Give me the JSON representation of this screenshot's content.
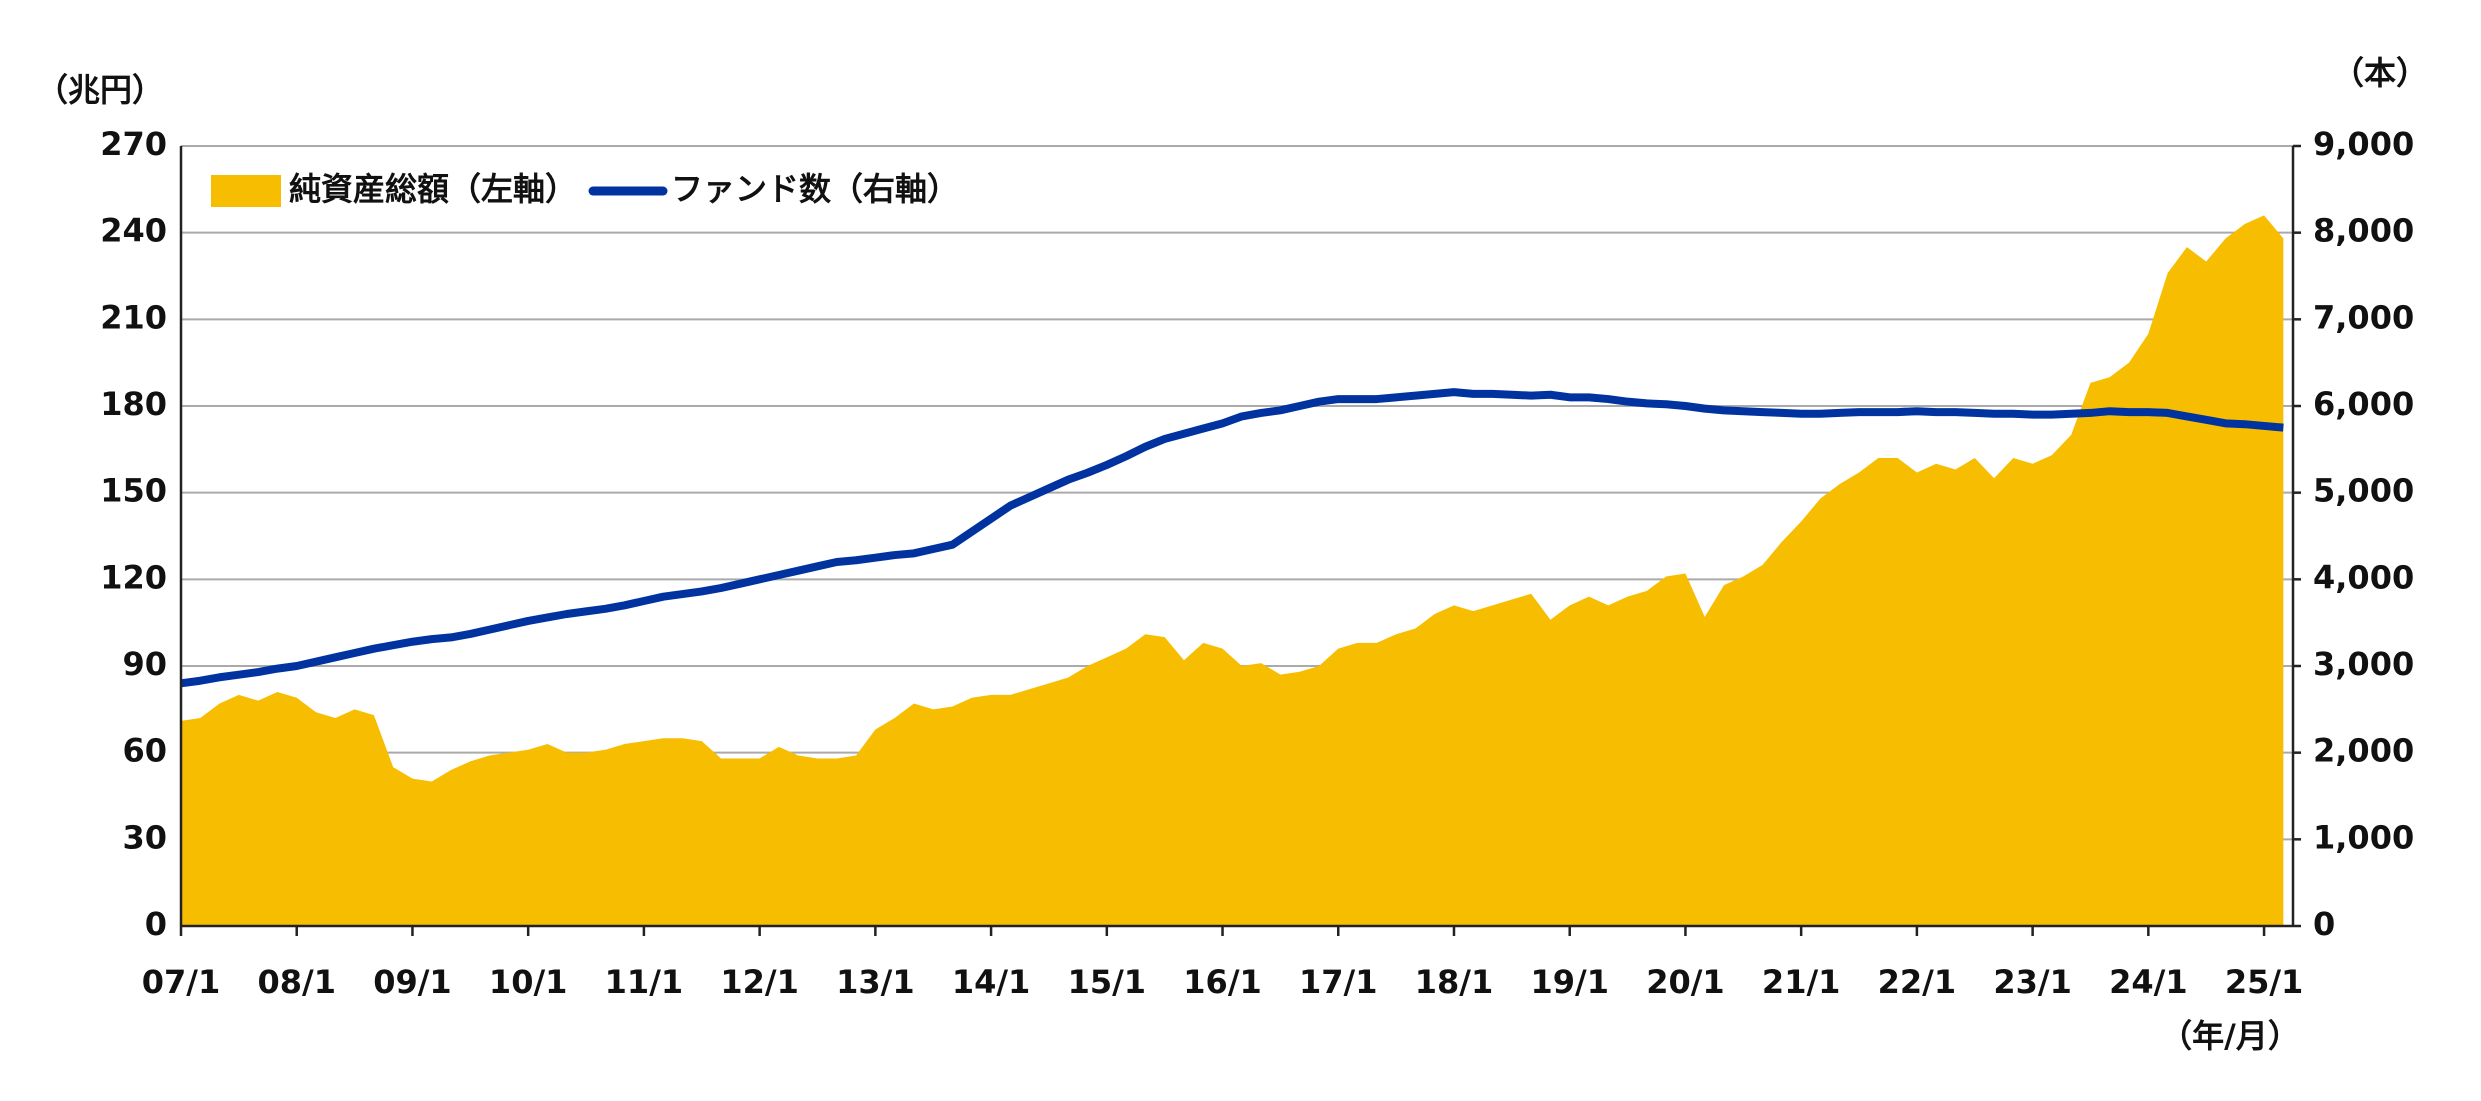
{
  "chart_data": {
    "type": "combo",
    "y_unit": "（兆円）",
    "y2_unit": "（本）",
    "x_unit": "（年/月）",
    "categories": [
      "07/1",
      null,
      null,
      null,
      null,
      null,
      "08/1",
      null,
      null,
      null,
      null,
      null,
      "09/1",
      null,
      null,
      null,
      null,
      null,
      "10/1",
      null,
      null,
      null,
      null,
      null,
      "11/1",
      null,
      null,
      null,
      null,
      null,
      "12/1",
      null,
      null,
      null,
      null,
      null,
      "13/1",
      null,
      null,
      null,
      null,
      null,
      "14/1",
      null,
      null,
      null,
      null,
      null,
      "15/1",
      null,
      null,
      null,
      null,
      null,
      "16/1",
      null,
      null,
      null,
      null,
      null,
      "17/1",
      null,
      null,
      null,
      null,
      null,
      "18/1",
      null,
      null,
      null,
      null,
      null,
      "19/1",
      null,
      null,
      null,
      null,
      null,
      "20/1",
      null,
      null,
      null,
      null,
      null,
      "21/1",
      null,
      null,
      null,
      null,
      null,
      "22/1",
      null,
      null,
      null,
      null,
      null,
      "23/1",
      null,
      null,
      null,
      null,
      null,
      "24/1",
      null,
      null,
      null,
      null,
      null,
      "25/1",
      null
    ],
    "series": [
      {
        "name": "純資産総額（左軸）",
        "type": "area",
        "axis": "y",
        "color": "#f7bd00",
        "values": [
          71,
          72,
          77,
          80,
          78,
          81,
          79,
          74,
          72,
          75,
          73,
          55,
          51,
          50,
          54,
          57,
          59,
          60,
          61,
          63,
          60,
          60,
          61,
          63,
          64,
          65,
          65,
          64,
          58,
          58,
          58,
          62,
          59,
          58,
          58,
          59,
          68,
          72,
          77,
          75,
          76,
          79,
          80,
          80,
          82,
          84,
          86,
          90,
          93,
          96,
          101,
          100,
          92,
          98,
          96,
          90,
          91,
          87,
          88,
          90,
          96,
          98,
          98,
          101,
          103,
          108,
          111,
          109,
          111,
          113,
          115,
          106,
          111,
          114,
          111,
          114,
          116,
          121,
          122,
          107,
          118,
          121,
          125,
          133,
          140,
          148,
          153,
          157,
          162,
          162,
          157,
          160,
          158,
          162,
          155,
          162,
          160,
          163,
          170,
          188,
          190,
          195,
          205,
          226,
          235,
          230,
          238,
          243,
          246,
          238
        ]
      },
      {
        "name": "ファンド数（右軸）",
        "type": "line",
        "axis": "y2",
        "color": "#0033a0",
        "values": [
          2800,
          2830,
          2870,
          2900,
          2930,
          2970,
          3000,
          3050,
          3100,
          3150,
          3200,
          3240,
          3280,
          3310,
          3330,
          3370,
          3420,
          3470,
          3520,
          3560,
          3600,
          3630,
          3660,
          3700,
          3750,
          3800,
          3830,
          3860,
          3900,
          3950,
          4000,
          4050,
          4100,
          4150,
          4200,
          4220,
          4250,
          4280,
          4300,
          4350,
          4400,
          4550,
          4700,
          4850,
          4950,
          5050,
          5150,
          5230,
          5320,
          5420,
          5530,
          5620,
          5680,
          5740,
          5800,
          5880,
          5920,
          5950,
          6000,
          6050,
          6080,
          6080,
          6080,
          6100,
          6120,
          6140,
          6160,
          6140,
          6140,
          6130,
          6120,
          6130,
          6100,
          6100,
          6080,
          6050,
          6030,
          6020,
          6000,
          5970,
          5950,
          5940,
          5930,
          5920,
          5910,
          5910,
          5920,
          5930,
          5930,
          5930,
          5940,
          5930,
          5930,
          5920,
          5910,
          5910,
          5900,
          5900,
          5910,
          5920,
          5940,
          5930,
          5930,
          5920,
          5880,
          5840,
          5800,
          5790,
          5770,
          5750
        ]
      }
    ],
    "ylim": [
      0,
      270
    ],
    "yticks": [
      0,
      30,
      60,
      90,
      120,
      150,
      180,
      210,
      240,
      270
    ],
    "y2lim": [
      0,
      9000
    ],
    "y2ticks": [
      0,
      {
        "value": 1000,
        "label": "1,000"
      },
      {
        "value": 2000,
        "label": "2,000"
      },
      {
        "value": 3000,
        "label": "3,000"
      },
      {
        "value": 4000,
        "label": "4,000"
      },
      {
        "value": 5000,
        "label": "5,000"
      },
      {
        "value": 6000,
        "label": "6,000"
      },
      {
        "value": 7000,
        "label": "7,000"
      },
      {
        "value": 8000,
        "label": "8,000"
      },
      {
        "value": 9000,
        "label": "9,000"
      }
    ],
    "grid": true,
    "legend": "top-left"
  }
}
